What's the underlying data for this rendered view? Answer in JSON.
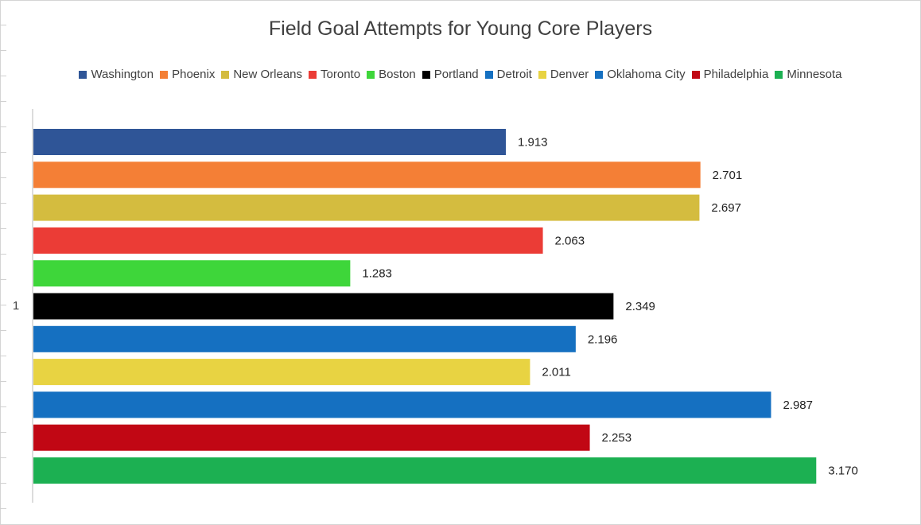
{
  "chart_data": {
    "type": "bar",
    "orientation": "horizontal",
    "title": "Field Goal Attempts for Young Core Players",
    "xlabel": "",
    "ylabel": "",
    "categories": [
      "1"
    ],
    "grid": false,
    "legend_position": "top",
    "xlim": [
      0,
      3.5
    ],
    "series": [
      {
        "name": "Washington",
        "values": [
          1.913
        ],
        "label": "1.913",
        "color": "#2f5597"
      },
      {
        "name": "Phoenix",
        "values": [
          2.701
        ],
        "label": "2.701",
        "color": "#f47f36"
      },
      {
        "name": "New Orleans",
        "values": [
          2.697
        ],
        "label": "2.697",
        "color": "#d4bc3f"
      },
      {
        "name": "Toronto",
        "values": [
          2.063
        ],
        "label": "2.063",
        "color": "#eb3c36"
      },
      {
        "name": "Boston",
        "values": [
          1.283
        ],
        "label": "1.283",
        "color": "#3ed63a"
      },
      {
        "name": "Portland",
        "values": [
          2.349
        ],
        "label": "2.349",
        "color": "#000000"
      },
      {
        "name": "Detroit",
        "values": [
          2.196
        ],
        "label": "2.196",
        "color": "#1570c1"
      },
      {
        "name": "Denver",
        "values": [
          2.011
        ],
        "label": "2.011",
        "color": "#e8d342"
      },
      {
        "name": "Oklahoma City",
        "values": [
          2.987
        ],
        "label": "2.987",
        "color": "#1570c1"
      },
      {
        "name": "Philadelphia",
        "values": [
          2.253
        ],
        "label": "2.253",
        "color": "#c10714"
      },
      {
        "name": "Minnesota",
        "values": [
          3.17
        ],
        "label": "3.170",
        "color": "#1cb052"
      }
    ]
  }
}
